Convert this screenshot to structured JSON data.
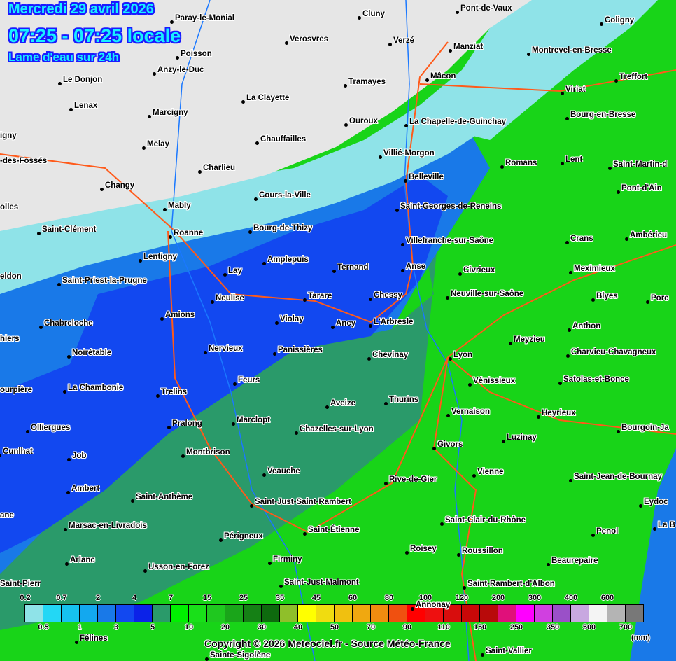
{
  "header": {
    "date": "Mercredi 29 avril 2026",
    "time_range": "07:25 - 07:25 locale",
    "product": "Lame d'eau sur 24h"
  },
  "cities": [
    "Cluny",
    "Pont-de-Vaux",
    "Coligny",
    "Paray-le-Monial",
    "Verosvres",
    "Verzé",
    "Manziat",
    "Montrevel-en-Bresse",
    "Poisson",
    "Le Donjon",
    "Anzy-le-Duc",
    "Tramayes",
    "Mâcon",
    "Treffort",
    "La Clayette",
    "Viriat",
    "Lenax",
    "Marcigny",
    "Ouroux",
    "La Chapelle-de-Guinchay",
    "Bourg-en-Bresse",
    "Chauffailles",
    "Melay",
    "Villié-Morgon",
    "Charlieu",
    "Romans",
    "Lent",
    "Saint-Martin-d",
    "Changy",
    "Belleville",
    "Pont-d'Ain",
    "Mably",
    "Cours-la-Ville",
    "Saint-Georges-de-Reneins",
    "Saint-Clément",
    "Roanne",
    "Bourg-de-Thizy",
    "Crans",
    "Ambérieu",
    "Villefranche-sur-Saône",
    "Lentigny",
    "Amplepuis",
    "Ternand",
    "Anse",
    "Civrieux",
    "Meximieux",
    "Lay",
    "Saint-Priest-la-Prugne",
    "Chessy",
    "Tarare",
    "Neuville-sur-Saône",
    "Blyes",
    "Porc",
    "Neulise",
    "Amions",
    "Violay",
    "Ancy",
    "L'Arbresle",
    "Anthon",
    "Chabreloche",
    "Meyzieu",
    "Nervieux",
    "Panissières",
    "Charvieu-Chavagneux",
    "Noirétable",
    "Chevinay",
    "Lyon",
    "Satolas-et-Bonce",
    "Vénissieux",
    "Feurs",
    "La Chambonie",
    "Trelins",
    "Aveize",
    "Thurins",
    "Vernaison",
    "Heyrieux",
    "Pralong",
    "Marclopt",
    "Olliergues",
    "Chazelles-sur-Lyon",
    "Bourgoin-Ja",
    "Luzinay",
    "Givors",
    "Cunlhat",
    "Job",
    "Montbrison",
    "Vienne",
    "Veauche",
    "Saint-Jean-de-Bournay",
    "Rive-de-Gier",
    "Ambert",
    "Saint-Anthème",
    "Saint-Just-Saint-Rambert",
    "Eydoc",
    "Saint-Clair-du-Rhône",
    "Marsac-en-Livradois",
    "Saint-Étienne",
    "La B",
    "Périgneux",
    "Penol",
    "Roisey",
    "Roussillon",
    "Arlanc",
    "Usson-en-Forez",
    "Firminy",
    "Beaurepaire",
    "Saint-Just-Malmont",
    "Saint-Rambert-d'Albon",
    "Félines",
    "Sainte-Sigolène",
    "Saint-Vallier",
    "Annonay",
    "igny",
    "-des-Fossés",
    "olles",
    "eldon",
    "hiers",
    "ourpière",
    "ane",
    "Saint-Pierr"
  ],
  "legend": {
    "unit": "(mm)",
    "top_labels": [
      "0.2",
      "0.7",
      "2",
      "4",
      "7",
      "15",
      "25",
      "35",
      "45",
      "60",
      "80",
      "100",
      "120",
      "200",
      "300",
      "400",
      "600"
    ],
    "bottom_labels": [
      "0.5",
      "1",
      "3",
      "5",
      "10",
      "20",
      "30",
      "40",
      "50",
      "70",
      "90",
      "110",
      "150",
      "250",
      "350",
      "500",
      "700"
    ],
    "colors": [
      "#8fe3e8",
      "#23d7f5",
      "#16c2ef",
      "#13a8ef",
      "#1979e8",
      "#1248f0",
      "#0b22e8",
      "#2a9a6a",
      "#00f000",
      "#19e019",
      "#1fc81f",
      "#1aa51a",
      "#158015",
      "#0e6a0e",
      "#8fbf2a",
      "#ffff00",
      "#f0dc10",
      "#f0c010",
      "#f0a810",
      "#f08c10",
      "#f05010",
      "#ff0000",
      "#ee1010",
      "#d80d0d",
      "#c80808",
      "#b80a0a",
      "#e0107a",
      "#ff00ff",
      "#d040e0",
      "#9a50c8",
      "#c8a8e0",
      "#f4f4f4",
      "#b4b4b4",
      "#787878"
    ]
  },
  "copyright": "Copyright © 2026  Meteociel.fr  -  Source Météo-France",
  "colors": {
    "no_rain": "#e6e6e6",
    "light": "#8fe3e8",
    "blue": "#1979e8",
    "dark_blue": "#1248f0",
    "green": "#16d816",
    "dark_green": "#2a9a6a"
  }
}
